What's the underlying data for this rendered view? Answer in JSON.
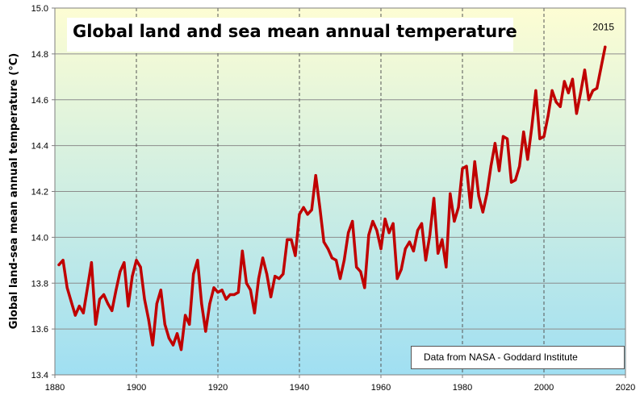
{
  "chart_data": {
    "type": "line",
    "title": "Global land and sea mean annual temperature",
    "xlabel": "",
    "ylabel": "Global land-sea mean annual temperature (°C)",
    "xlim": [
      1880,
      2020
    ],
    "ylim": [
      13.4,
      15.0
    ],
    "x_ticks": [
      "1880",
      "1900",
      "1920",
      "1940",
      "1960",
      "1980",
      "2000",
      "2020"
    ],
    "y_ticks": [
      "13.4",
      "13.6",
      "13.8",
      "14.0",
      "14.2",
      "14.4",
      "14.6",
      "14.8",
      "15.0"
    ],
    "grid": true,
    "background_gradient": {
      "top": "#fdfdd3",
      "bottom": "#a0dff2"
    },
    "series": [
      {
        "name": "Global land-sea mean annual temperature",
        "color": "#c00000",
        "x": [
          1881,
          1882,
          1883,
          1884,
          1885,
          1886,
          1887,
          1888,
          1889,
          1890,
          1891,
          1892,
          1893,
          1894,
          1895,
          1896,
          1897,
          1898,
          1899,
          1900,
          1901,
          1902,
          1903,
          1904,
          1905,
          1906,
          1907,
          1908,
          1909,
          1910,
          1911,
          1912,
          1913,
          1914,
          1915,
          1916,
          1917,
          1918,
          1919,
          1920,
          1921,
          1922,
          1923,
          1924,
          1925,
          1926,
          1927,
          1928,
          1929,
          1930,
          1931,
          1932,
          1933,
          1934,
          1935,
          1936,
          1937,
          1938,
          1939,
          1940,
          1941,
          1942,
          1943,
          1944,
          1945,
          1946,
          1947,
          1948,
          1949,
          1950,
          1951,
          1952,
          1953,
          1954,
          1955,
          1956,
          1957,
          1958,
          1959,
          1960,
          1961,
          1962,
          1963,
          1964,
          1965,
          1966,
          1967,
          1968,
          1969,
          1970,
          1971,
          1972,
          1973,
          1974,
          1975,
          1976,
          1977,
          1978,
          1979,
          1980,
          1981,
          1982,
          1983,
          1984,
          1985,
          1986,
          1987,
          1988,
          1989,
          1990,
          1991,
          1992,
          1993,
          1994,
          1995,
          1996,
          1997,
          1998,
          1999,
          2000,
          2001,
          2002,
          2003,
          2004,
          2005,
          2006,
          2007,
          2008,
          2009,
          2010,
          2011,
          2012,
          2013,
          2014,
          2015
        ],
        "values": [
          13.88,
          13.9,
          13.78,
          13.72,
          13.66,
          13.7,
          13.67,
          13.78,
          13.89,
          13.62,
          13.73,
          13.75,
          13.71,
          13.68,
          13.77,
          13.85,
          13.89,
          13.7,
          13.83,
          13.9,
          13.87,
          13.73,
          13.64,
          13.53,
          13.71,
          13.77,
          13.62,
          13.56,
          13.53,
          13.58,
          13.51,
          13.66,
          13.62,
          13.84,
          13.9,
          13.71,
          13.59,
          13.71,
          13.78,
          13.76,
          13.77,
          13.73,
          13.75,
          13.75,
          13.76,
          13.94,
          13.8,
          13.77,
          13.67,
          13.82,
          13.91,
          13.84,
          13.74,
          13.83,
          13.82,
          13.84,
          13.99,
          13.99,
          13.92,
          14.1,
          14.13,
          14.1,
          14.12,
          14.27,
          14.13,
          13.98,
          13.95,
          13.91,
          13.9,
          13.82,
          13.9,
          14.02,
          14.07,
          13.87,
          13.85,
          13.78,
          14.01,
          14.07,
          14.03,
          13.95,
          14.08,
          14.02,
          14.06,
          13.82,
          13.86,
          13.95,
          13.98,
          13.94,
          14.03,
          14.06,
          13.9,
          14.01,
          14.17,
          13.93,
          13.99,
          13.87,
          14.19,
          14.07,
          14.13,
          14.3,
          14.31,
          14.13,
          14.33,
          14.18,
          14.11,
          14.19,
          14.31,
          14.41,
          14.29,
          14.44,
          14.43,
          14.24,
          14.25,
          14.31,
          14.46,
          14.34,
          14.48,
          14.64,
          14.43,
          14.44,
          14.53,
          14.64,
          14.59,
          14.57,
          14.68,
          14.63,
          14.69,
          14.54,
          14.63,
          14.73,
          14.6,
          14.64,
          14.65,
          14.74,
          14.83
        ]
      }
    ],
    "annotations": [
      {
        "text": "2015",
        "x": 2015,
        "y": 14.83
      }
    ]
  },
  "title_label": "Global land and sea mean annual temperature",
  "source_label": "Data from NASA - Goddard Institute"
}
